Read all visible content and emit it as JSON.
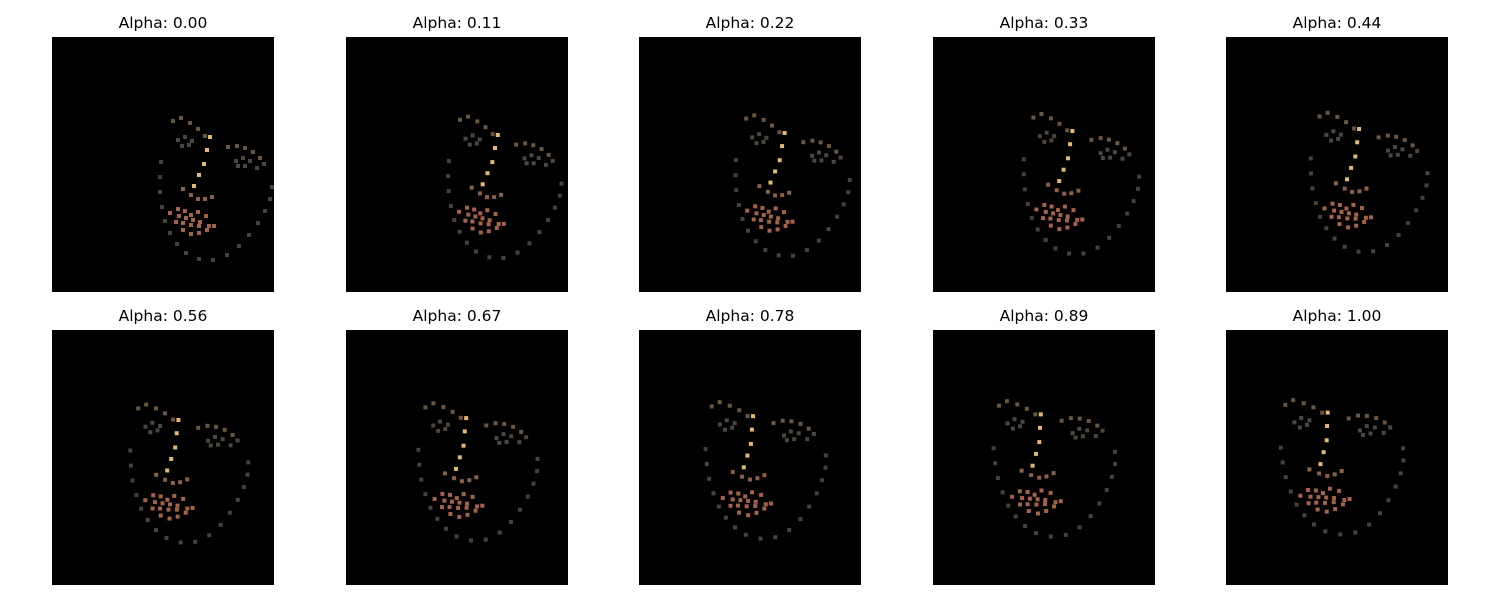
{
  "figure": {
    "panels": [
      {
        "title": "Alpha: 0.00",
        "alpha": 0.0
      },
      {
        "title": "Alpha: 0.11",
        "alpha": 0.11
      },
      {
        "title": "Alpha: 0.22",
        "alpha": 0.22
      },
      {
        "title": "Alpha: 0.33",
        "alpha": 0.33
      },
      {
        "title": "Alpha: 0.44",
        "alpha": 0.44
      },
      {
        "title": "Alpha: 0.56",
        "alpha": 0.56
      },
      {
        "title": "Alpha: 0.67",
        "alpha": 0.67
      },
      {
        "title": "Alpha: 0.78",
        "alpha": 0.78
      },
      {
        "title": "Alpha: 0.89",
        "alpha": 0.89
      },
      {
        "title": "Alpha: 1.00",
        "alpha": 1.0
      }
    ],
    "colors": {
      "background": "#000000",
      "jaw": "#4a4036",
      "brow": "#6a5640",
      "eye": "#4c4640",
      "nose_bridge": "#e2b874",
      "nose_base": "#8a6048",
      "mouth": "#a4624a"
    }
  }
}
